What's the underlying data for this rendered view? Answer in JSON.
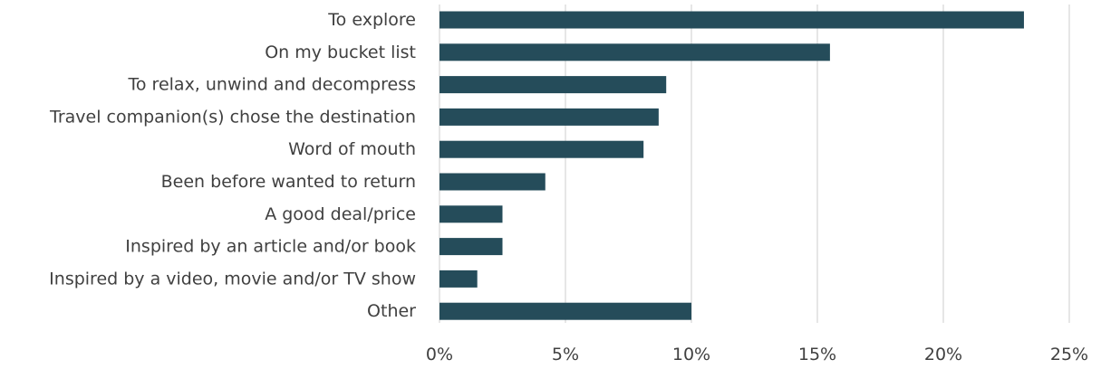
{
  "chart_data": {
    "type": "bar",
    "orientation": "horizontal",
    "categories": [
      "To explore",
      "On my bucket list",
      "To relax, unwind and decompress",
      "Travel companion(s) chose the destination",
      "Word of mouth",
      "Been before wanted to return",
      "A good deal/price",
      "Inspired by an article and/or book",
      "Inspired by a video, movie and/or TV show",
      "Other"
    ],
    "values": [
      23.2,
      15.5,
      9.0,
      8.7,
      8.1,
      4.2,
      2.5,
      2.5,
      1.5,
      10.0
    ],
    "xlim": [
      0,
      25
    ],
    "ticks": [
      0,
      5,
      10,
      15,
      20,
      25
    ],
    "tick_labels": [
      "0%",
      "5%",
      "10%",
      "15%",
      "20%",
      "25%"
    ],
    "grid": "vertical",
    "legend": "none",
    "bar_color": "#254c5a",
    "grid_color": "#d9d9d9",
    "text_color": "#404040"
  }
}
